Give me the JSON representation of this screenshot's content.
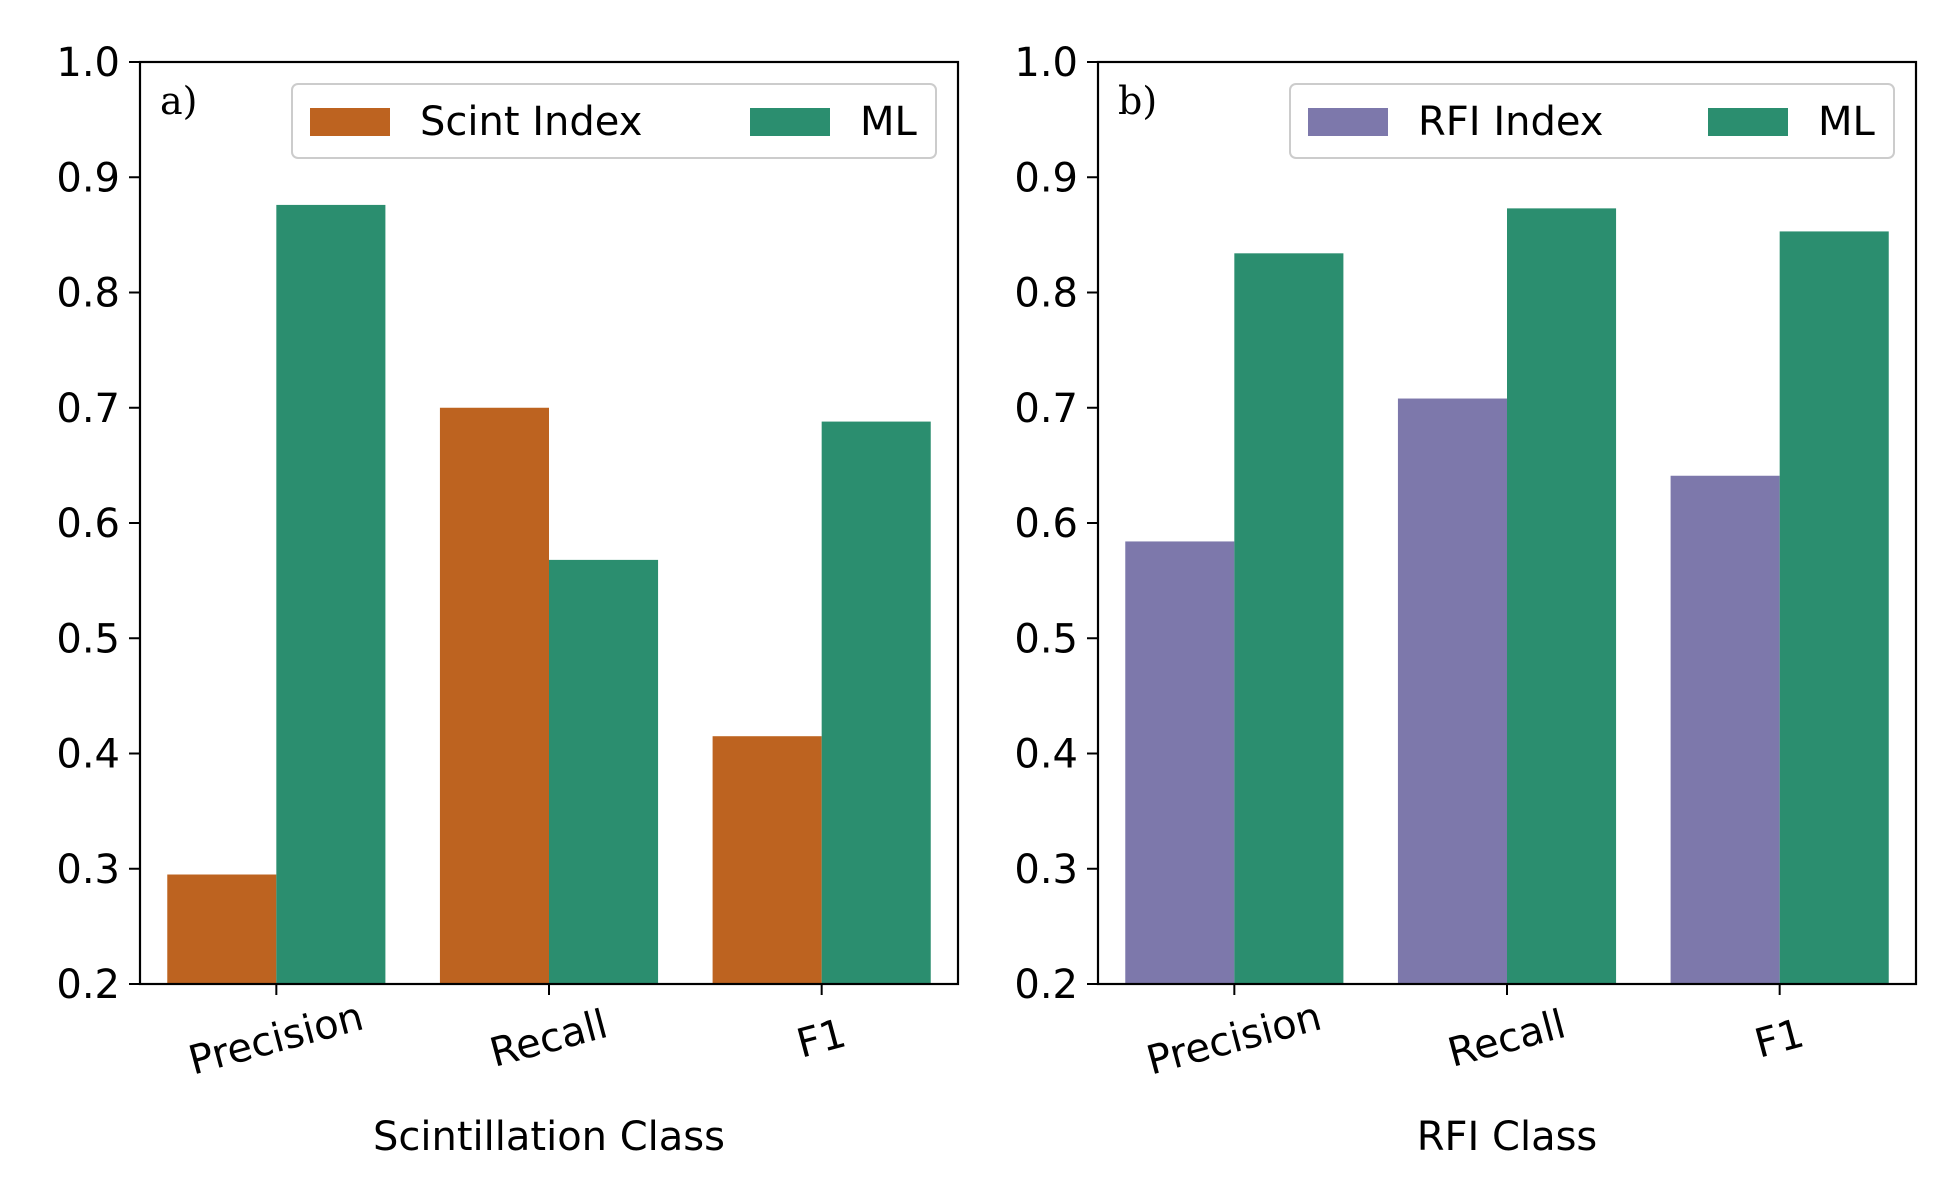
{
  "chart_data": [
    {
      "type": "bar",
      "panel_label": "a)",
      "categories": [
        "Precision",
        "Recall",
        "F1"
      ],
      "series": [
        {
          "name": "Scint Index",
          "values": [
            0.295,
            0.7,
            0.415
          ],
          "color": "#bd6320"
        },
        {
          "name": "ML",
          "values": [
            0.876,
            0.568,
            0.688
          ],
          "color": "#2b8e6f"
        }
      ],
      "xlabel": "Scintillation Class",
      "ylabel": "",
      "ylim": [
        0.2,
        1.0
      ],
      "yticks": [
        "0.2",
        "0.3",
        "0.4",
        "0.5",
        "0.6",
        "0.7",
        "0.8",
        "0.9",
        "1.0"
      ],
      "legend_position": "upper-right",
      "grid": false
    },
    {
      "type": "bar",
      "panel_label": "b)",
      "categories": [
        "Precision",
        "Recall",
        "F1"
      ],
      "series": [
        {
          "name": "RFI Index",
          "values": [
            0.584,
            0.708,
            0.641
          ],
          "color": "#7d78ab"
        },
        {
          "name": "ML",
          "values": [
            0.834,
            0.873,
            0.853
          ],
          "color": "#2b8e6f"
        }
      ],
      "xlabel": "RFI Class",
      "ylabel": "",
      "ylim": [
        0.2,
        1.0
      ],
      "yticks": [
        "0.2",
        "0.3",
        "0.4",
        "0.5",
        "0.6",
        "0.7",
        "0.8",
        "0.9",
        "1.0"
      ],
      "legend_position": "upper-right",
      "grid": false
    }
  ]
}
